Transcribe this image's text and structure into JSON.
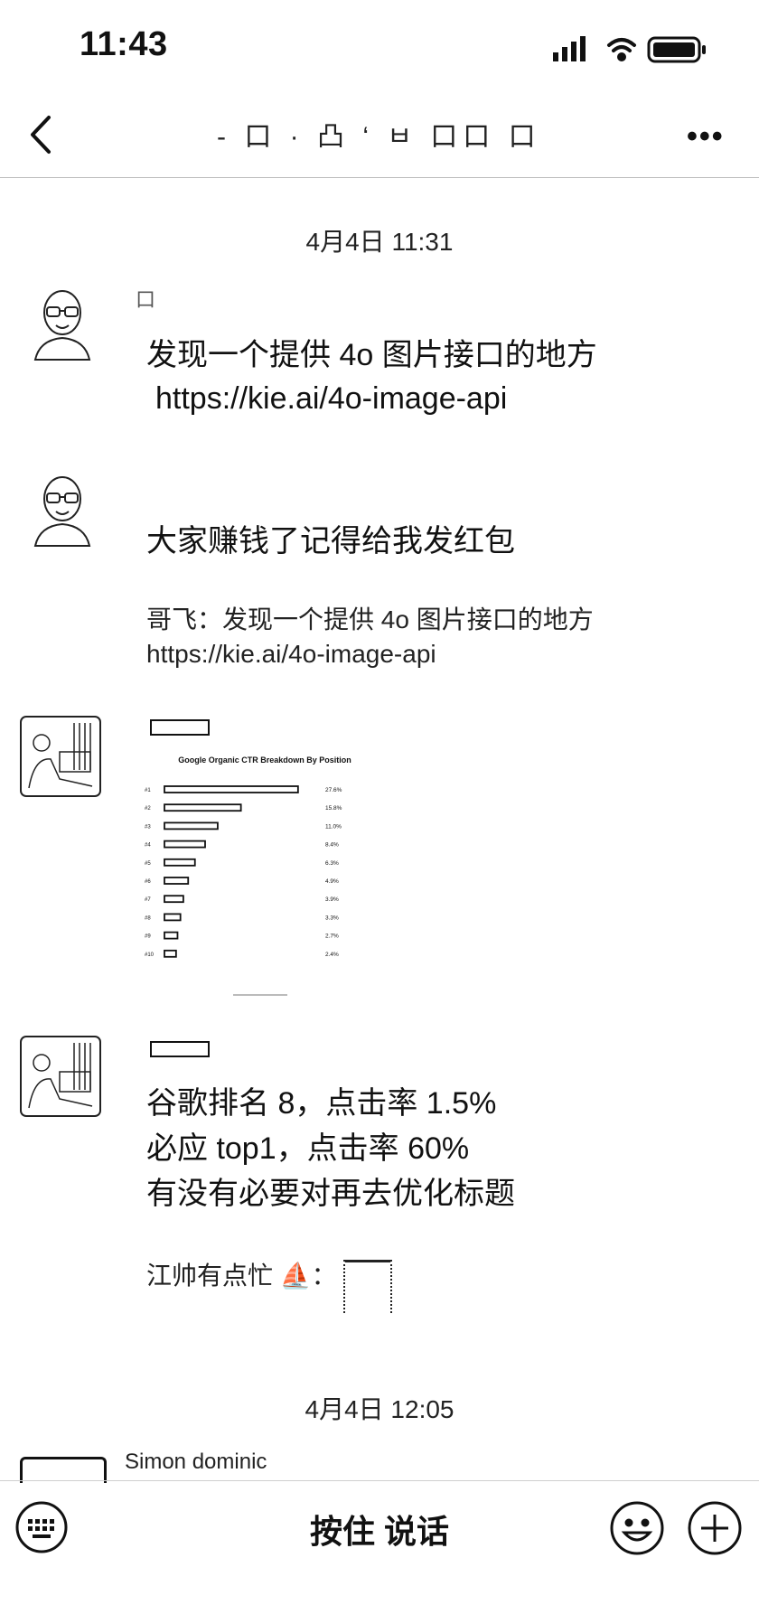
{
  "status_bar": {
    "time": "11:43"
  },
  "header": {
    "title": "- 口 · 凸 ‘ ㅂ 口口 口",
    "back_icon": "chevron-left-icon",
    "more_label": "•••"
  },
  "timestamps": [
    "4月4日 11:31",
    "4月4日 12:05"
  ],
  "messages": [
    {
      "sender": "口",
      "lines": [
        "发现一个提供 4o 图片接口的地方",
        "https://kie.ai/4o-image-api"
      ]
    },
    {
      "sender": "",
      "lines": [
        "大家赚钱了记得给我发红包"
      ],
      "quote": [
        "哥飞：发现一个提供 4o 图片接口的地方",
        "https://kie.ai/4o-image-api"
      ]
    },
    {
      "sender": ""
    },
    {
      "sender": "",
      "lines": [
        "谷歌排名 8，点击率 1.5%",
        "必应 top1，点击率 60%",
        "有没有必要对再去优化标题"
      ],
      "quote_prefix": "江帅有点忙"
    },
    {
      "sender": "Simon dominic"
    }
  ],
  "chart_data": {
    "type": "bar",
    "title": "Google Organic CTR Breakdown By Position",
    "categories": [
      "#1",
      "#2",
      "#3",
      "#4",
      "#5",
      "#6",
      "#7",
      "#8",
      "#9",
      "#10"
    ],
    "values": [
      27.6,
      15.8,
      11.0,
      8.4,
      6.3,
      4.9,
      3.9,
      3.3,
      2.7,
      2.4
    ],
    "value_labels": [
      "27.6%",
      "15.8%",
      "11.0%",
      "8.4%",
      "6.3%",
      "4.9%",
      "3.9%",
      "3.3%",
      "2.7%",
      "2.4%"
    ],
    "xlim": [
      0,
      28
    ]
  },
  "bottom_bar": {
    "hold_to_talk": "按住 说话"
  }
}
